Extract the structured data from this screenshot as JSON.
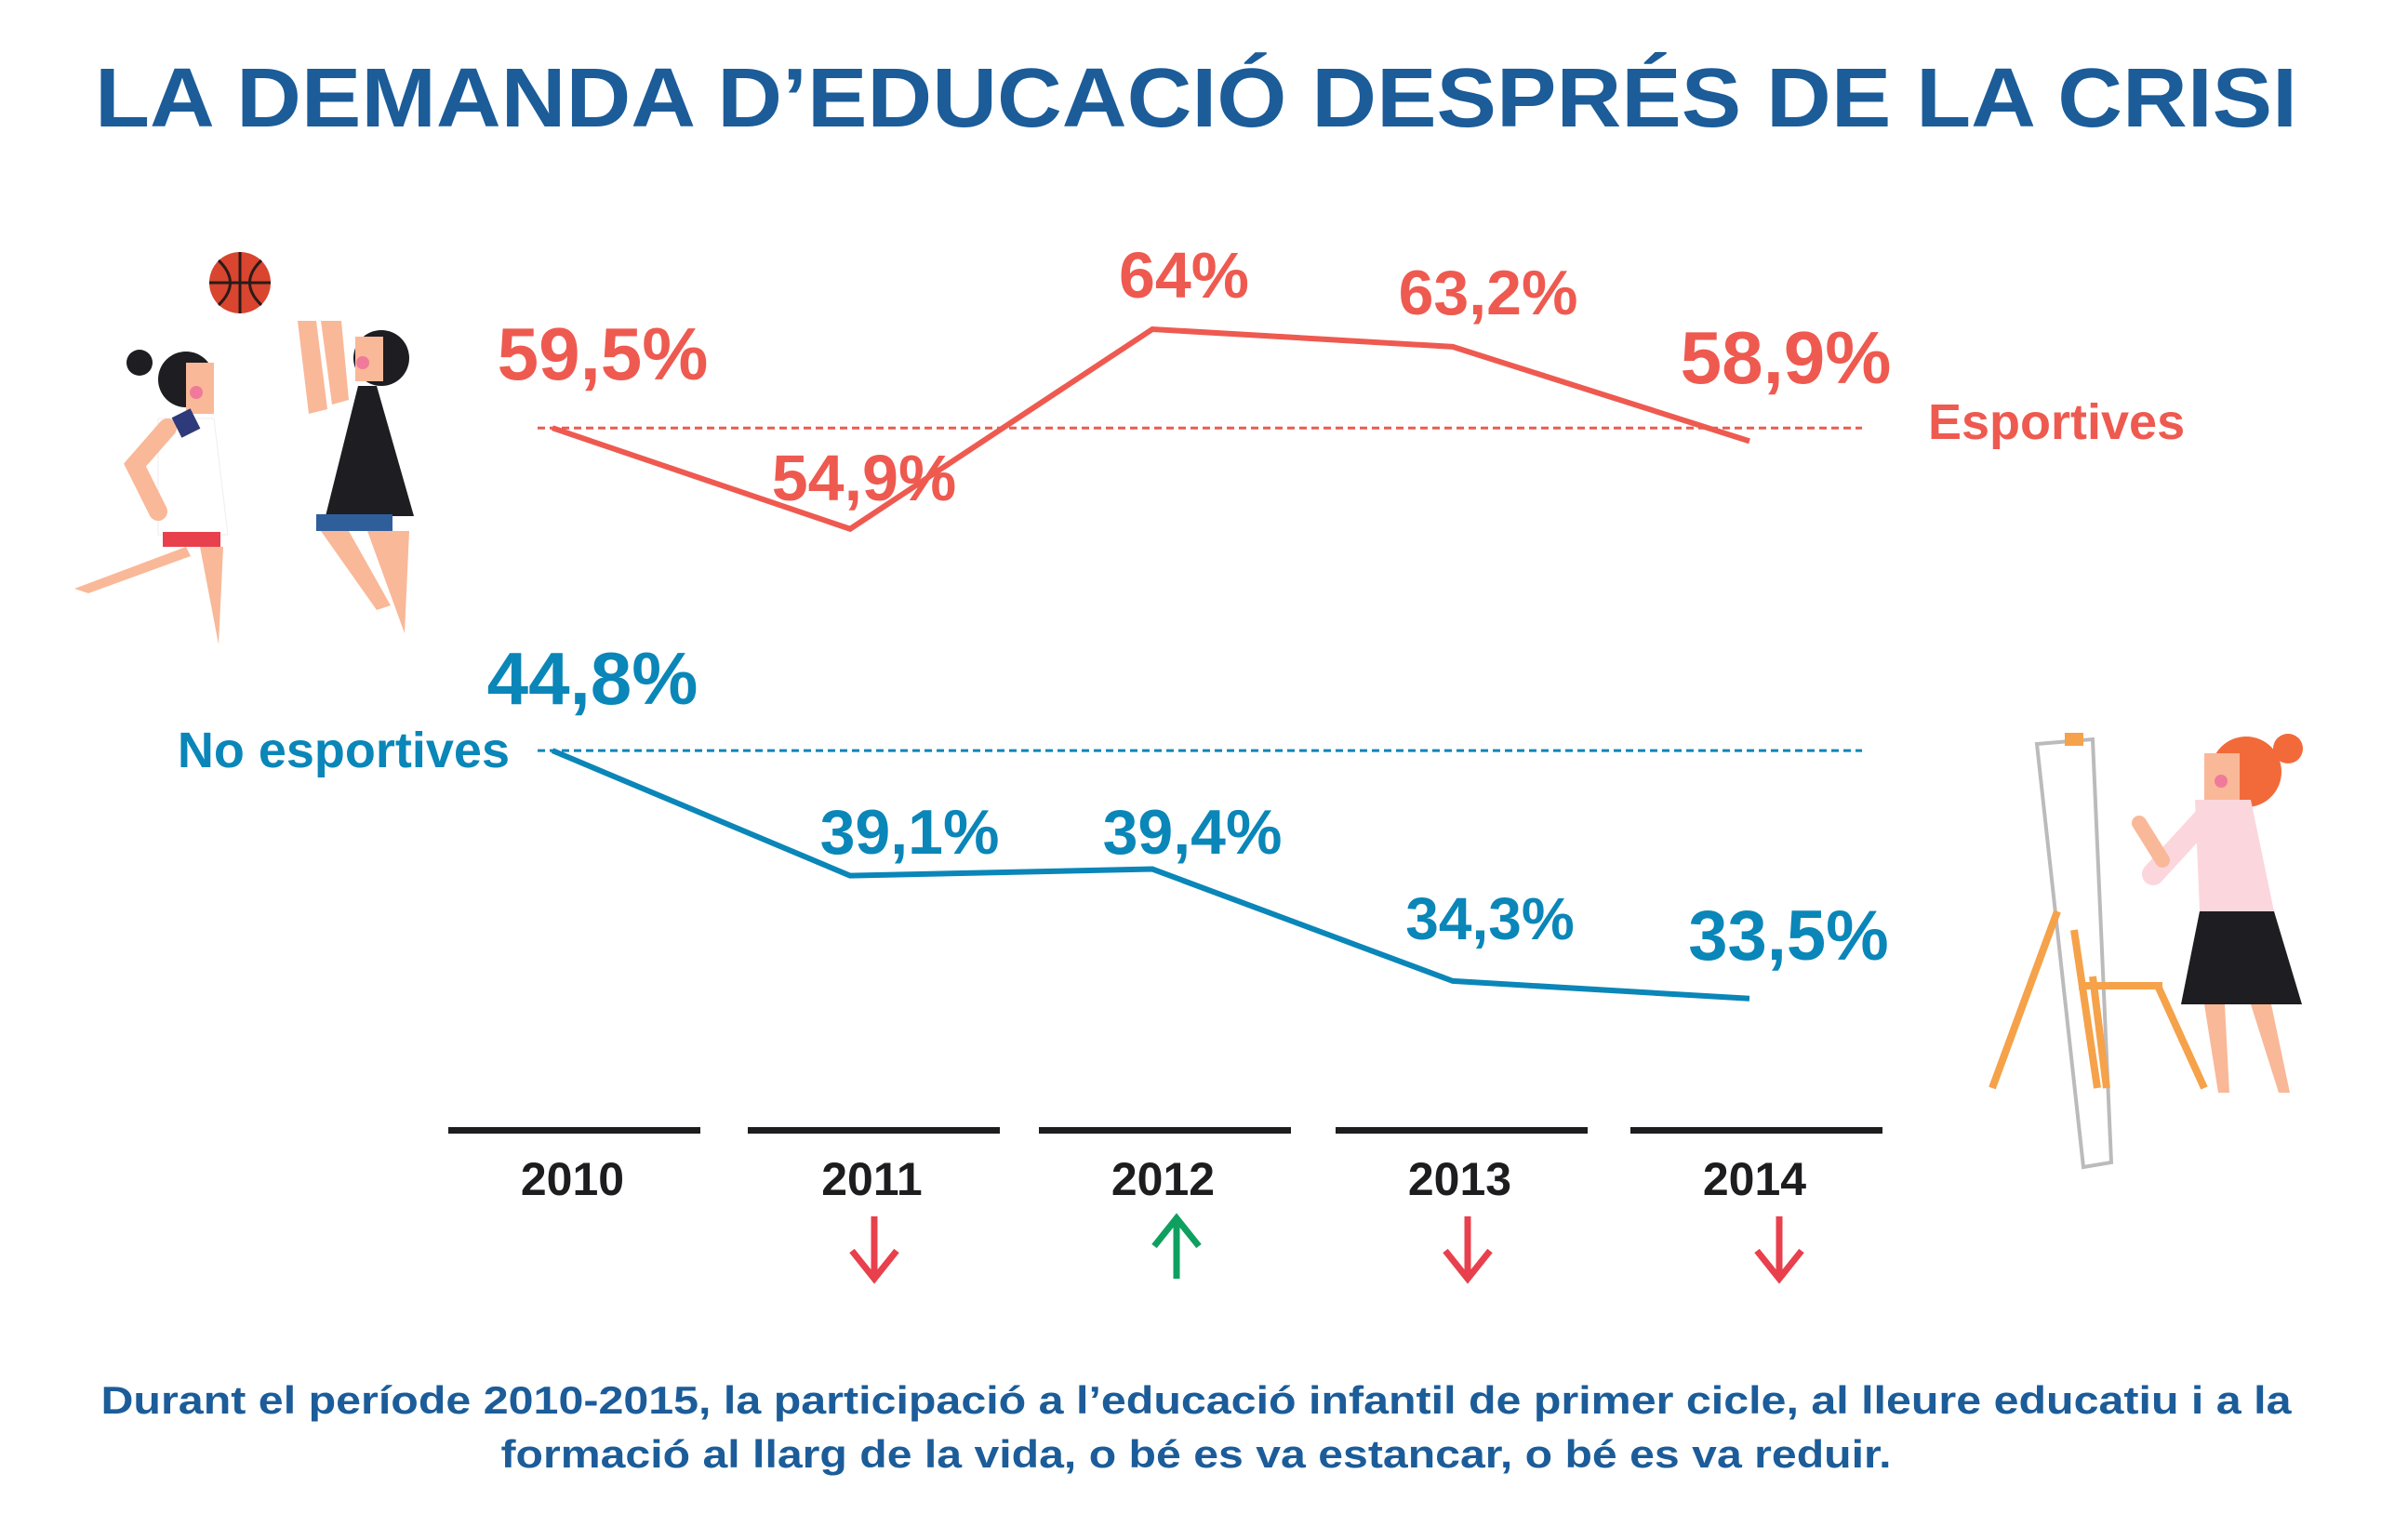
{
  "title": "LA DEMANDA D’EDUCACIÓ DESPRÉS DE LA CRISI",
  "footer": {
    "line1": "Durant el període 2010-2015, la participació a l’educació infantil de primer cicle, al lleure educatiu i a la",
    "line2": "formació al llarg de la vida, o bé es va estancar, o bé es va reduir."
  },
  "chart_data": {
    "type": "line",
    "categories": [
      "2010",
      "2011",
      "2012",
      "2013",
      "2014"
    ],
    "series": [
      {
        "name": "Esportives",
        "values": [
          59.5,
          54.9,
          64,
          63.2,
          58.9
        ],
        "labels": [
          "59,5%",
          "54,9%",
          "64%",
          "63,2%",
          "58,9%"
        ],
        "color": "#ee5a50",
        "reference": 59.5
      },
      {
        "name": "No esportives",
        "values": [
          44.8,
          39.1,
          39.4,
          34.3,
          33.5
        ],
        "labels": [
          "44,8%",
          "39,1%",
          "39,4%",
          "34,3%",
          "33,5%"
        ],
        "color": "#0a86b8",
        "reference": 44.8
      }
    ],
    "trend_arrows": [
      null,
      "down",
      "up",
      "down",
      "down"
    ],
    "arrow_colors": {
      "down": "#e8404c",
      "up": "#0fa060"
    },
    "grid": false,
    "legend": "inline-right"
  }
}
